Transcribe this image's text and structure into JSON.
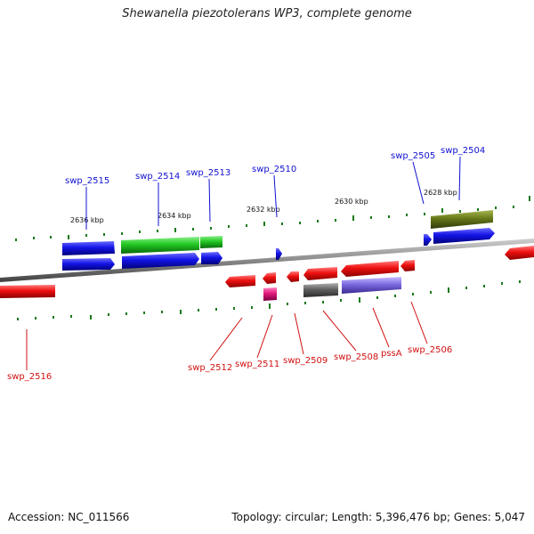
{
  "title": "Shewanella piezotolerans WP3, complete genome",
  "footer": {
    "accession": "Accession: NC_011566",
    "summary": "Topology: circular; Length: 5,396,476 bp; Genes: 5,047"
  },
  "colors": {
    "forward_cds": "#1010e0",
    "reverse_cds": "#e81010",
    "rrna": "#20c020",
    "trna": "#e0187a",
    "grey_feature": "#606060",
    "violet_feature": "#7a6ae0",
    "olive_feature": "#607010",
    "ruler_tick": "#1a7a1a",
    "backbone": "#8a8a8a"
  },
  "kbp_labels": [
    "2636 kbp",
    "2634 kbp",
    "2632 kbp",
    "2630 kbp",
    "2628 kbp"
  ],
  "forward_labels": [
    "swp_2515",
    "swp_2514",
    "swp_2513",
    "swp_2510",
    "swp_2505",
    "swp_2504"
  ],
  "reverse_labels": [
    "swp_2516",
    "swp_2512",
    "swp_2511",
    "swp_2509",
    "swp_2508",
    "pssA",
    "swp_2506"
  ]
}
